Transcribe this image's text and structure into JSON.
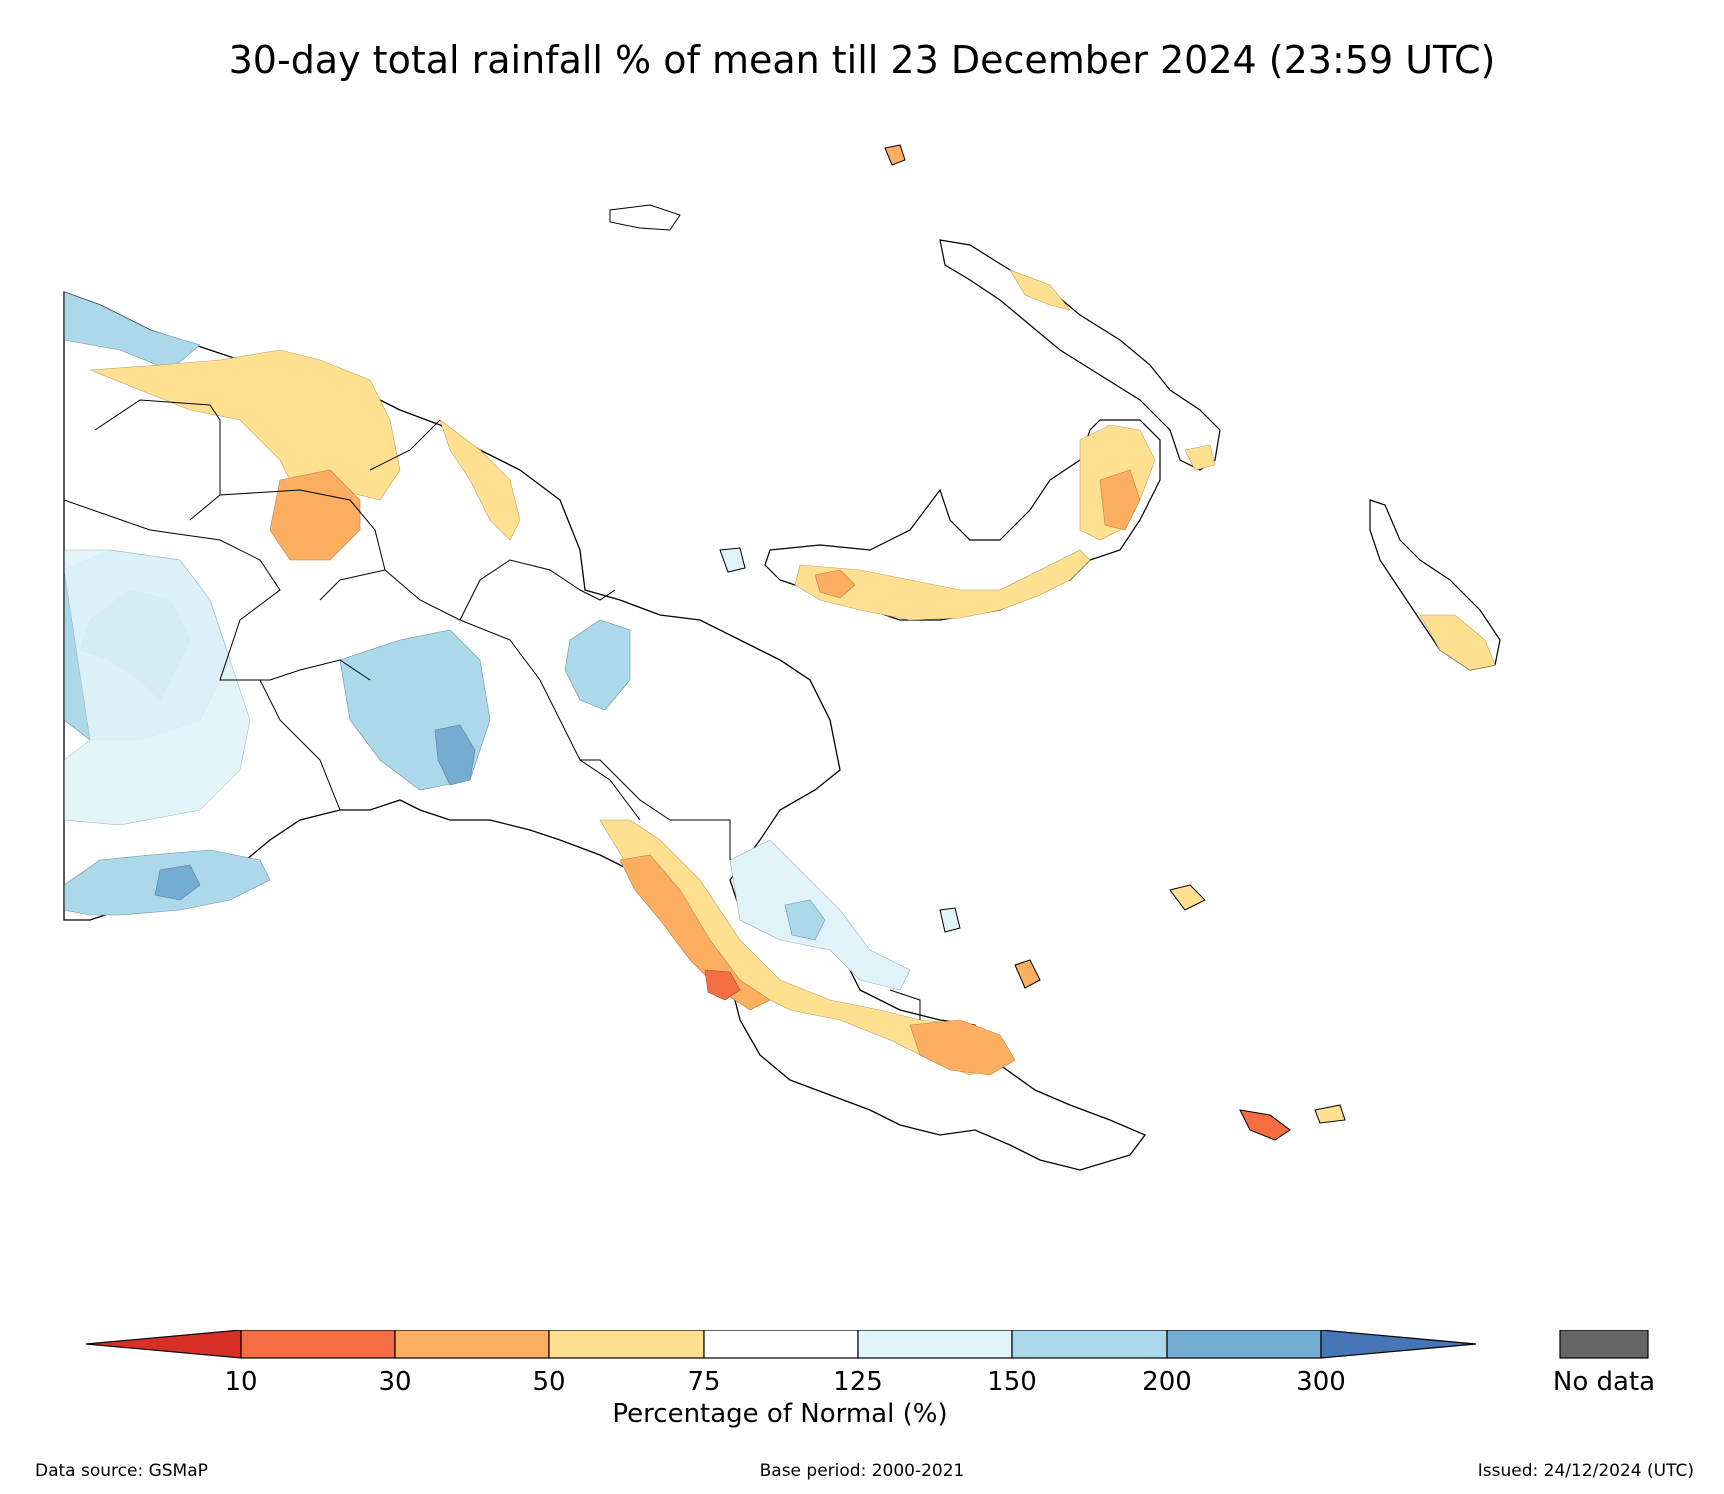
{
  "title": "30-day total rainfall % of mean till 23 December 2024 (23:59 UTC)",
  "colorbar": {
    "ticks": [
      "10",
      "30",
      "50",
      "75",
      "125",
      "150",
      "200",
      "300"
    ],
    "label": "Percentage of Normal (%)",
    "colors": {
      "below_10": "#d73027",
      "10_30": "#f46d43",
      "30_50": "#fdae61",
      "50_75": "#fee090",
      "75_125": "#ffffff",
      "125_150": "#e0f3f8",
      "150_200": "#abd9e9",
      "200_300": "#74add1",
      "above_300": "#4575b4"
    },
    "no_data_label": "No data",
    "no_data_color": "#666666"
  },
  "footer": {
    "source": "Data source: GSMaP",
    "base_period": "Base period: 2000-2021",
    "issued": "Issued: 24/12/2024 (UTC)"
  }
}
